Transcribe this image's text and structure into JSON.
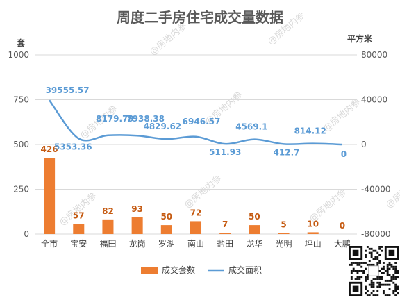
{
  "chart_data": {
    "type": "bar+line",
    "title": "周度二手房住宅成交量数据",
    "categories": [
      "全市",
      "宝安",
      "福田",
      "龙岗",
      "罗湖",
      "南山",
      "盐田",
      "龙华",
      "光明",
      "坪山",
      "大鹏"
    ],
    "series": [
      {
        "name": "成交套数",
        "type": "bar",
        "axis": "left",
        "color": "#ed7d31",
        "values": [
          426,
          57,
          82,
          93,
          50,
          72,
          7,
          50,
          5,
          10,
          0
        ],
        "labels": [
          "426",
          "57",
          "82",
          "93",
          "50",
          "72",
          "7",
          "50",
          "5",
          "10",
          "0"
        ]
      },
      {
        "name": "成交面积",
        "type": "line",
        "axis": "right",
        "color": "#5b9bd5",
        "values": [
          39555.57,
          5353.36,
          8179.79,
          7938.38,
          4829.62,
          6946.57,
          511.93,
          4569.1,
          412.7,
          814.12,
          0
        ],
        "labels": [
          "39555.57",
          "5353.36",
          "8179.79",
          "7938.38",
          "4829.62",
          "6946.57",
          "511.93",
          "4569.1",
          "412.7",
          "814.12",
          "0"
        ]
      }
    ],
    "y_left": {
      "label": "套",
      "ylim": [
        0,
        1000
      ],
      "ticks": [
        "0",
        "250",
        "500",
        "750",
        "1000"
      ]
    },
    "y_right": {
      "label": "平方米",
      "ylim": [
        -80000,
        80000
      ],
      "ticks": [
        "-80000",
        "-40000",
        "0",
        "40000",
        "80000"
      ]
    },
    "grid": true,
    "legend_position": "bottom",
    "watermark": "@房地内参"
  }
}
